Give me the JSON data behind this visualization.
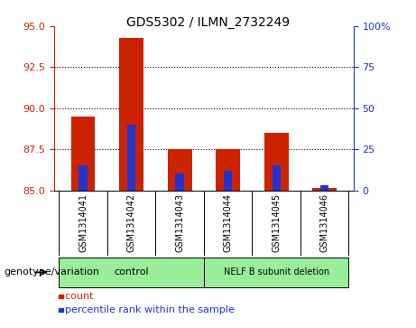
{
  "title": "GDS5302 / ILMN_2732249",
  "samples": [
    "GSM1314041",
    "GSM1314042",
    "GSM1314043",
    "GSM1314044",
    "GSM1314045",
    "GSM1314046"
  ],
  "count_values": [
    89.5,
    94.3,
    87.5,
    87.5,
    88.5,
    85.15
  ],
  "percentile_values": [
    15,
    40,
    10,
    12,
    15,
    3
  ],
  "ylim_left": [
    85,
    95
  ],
  "ylim_right": [
    0,
    100
  ],
  "yticks_left": [
    85,
    87.5,
    90,
    92.5,
    95
  ],
  "yticks_right": [
    0,
    25,
    50,
    75,
    100
  ],
  "ytick_labels_right": [
    "0",
    "25",
    "50",
    "75",
    "100%"
  ],
  "bar_bottom": 85,
  "red_color": "#cc2200",
  "blue_color": "#2233cc",
  "group_header": "genotype/variation",
  "bg_color": "#ffffff",
  "plot_bg_color": "#ffffff",
  "sample_area_color": "#cccccc",
  "group_green": "#99ee99"
}
